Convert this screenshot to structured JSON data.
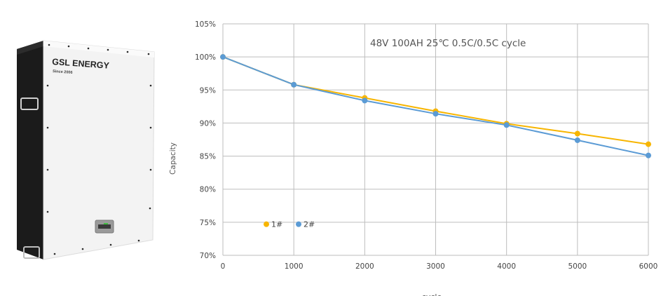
{
  "product": {
    "brand": "GSL ENERGY",
    "tagline": "Since 2006"
  },
  "chart_data": {
    "type": "line",
    "title": "48V 100AH 25℃ 0.5C/0.5C cycle",
    "xlabel": "cycle",
    "ylabel": "Capacity",
    "xlim": [
      0,
      6000
    ],
    "ylim": [
      70,
      105
    ],
    "x_ticks": [
      "0",
      "1000",
      "2000",
      "3000",
      "4000",
      "5000",
      "6000"
    ],
    "y_ticks": [
      "70%",
      "75%",
      "80%",
      "85%",
      "90%",
      "95%",
      "100%",
      "105%"
    ],
    "grid": true,
    "legend_position": "bottom-left",
    "x": [
      0,
      1000,
      2000,
      3000,
      4000,
      5000,
      6000
    ],
    "series": [
      {
        "name": "1#",
        "color": "#F7B500",
        "values": [
          100,
          95.8,
          93.8,
          91.8,
          89.9,
          88.4,
          86.8
        ]
      },
      {
        "name": "2#",
        "color": "#5B9BD5",
        "values": [
          100,
          95.8,
          93.4,
          91.4,
          89.7,
          87.4,
          85.1
        ]
      }
    ]
  }
}
